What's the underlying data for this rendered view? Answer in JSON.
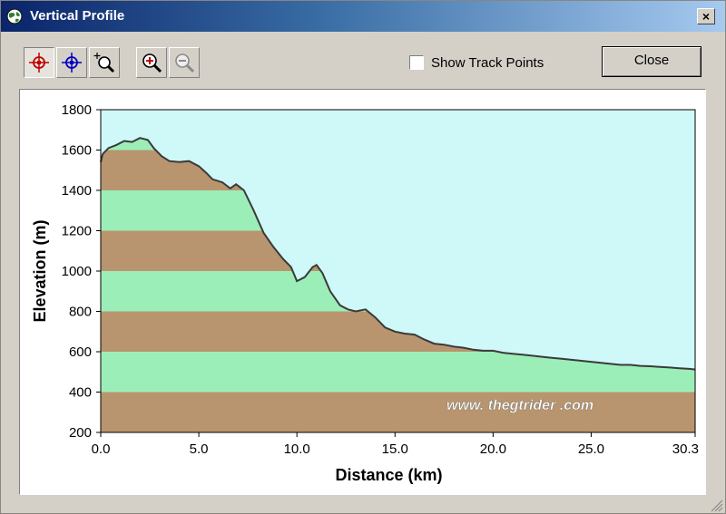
{
  "window": {
    "title": "Vertical Profile",
    "close_glyph": "×",
    "title_icon": "globe-icon"
  },
  "toolbar": {
    "buttons": [
      {
        "name": "red-crosshair-marker",
        "icon": "crosshair-red-icon",
        "pressed": true
      },
      {
        "name": "blue-crosshair-marker",
        "icon": "crosshair-blue-icon",
        "pressed": false
      },
      {
        "name": "zoom-area",
        "icon": "zoom-area-icon",
        "pressed": false
      },
      {
        "name": "zoom-in",
        "icon": "zoom-in-icon",
        "pressed": false
      },
      {
        "name": "zoom-out",
        "icon": "zoom-out-icon",
        "pressed": false,
        "disabled": true
      }
    ],
    "show_track_points_label": "Show Track Points",
    "show_track_points_checked": false,
    "close_label": "Close"
  },
  "chart_data": {
    "type": "area",
    "xlabel": "Distance   (km)",
    "ylabel": "Elevation  (m)",
    "xlim": [
      0,
      30.3
    ],
    "ylim": [
      200,
      1800
    ],
    "xticks": [
      "0.0",
      "5.0",
      "10.0",
      "15.0",
      "20.0",
      "25.0",
      "30.3"
    ],
    "xtick_values": [
      0,
      5,
      10,
      15,
      20,
      25,
      30.3
    ],
    "yticks": [
      "200",
      "400",
      "600",
      "800",
      "1000",
      "1200",
      "1400",
      "1600",
      "1800"
    ],
    "ytick_values": [
      200,
      400,
      600,
      800,
      1000,
      1200,
      1400,
      1600,
      1800
    ],
    "band_colors": [
      "#b8956e",
      "#9ceeb8"
    ],
    "sky_color": "#cff8f8",
    "line_color": "#3a3a3a",
    "watermark": "www. thegtrider .com",
    "x": [
      0,
      0.1,
      0.4,
      0.8,
      1.2,
      1.6,
      2.0,
      2.4,
      2.7,
      3.1,
      3.5,
      4.0,
      4.5,
      5.0,
      5.4,
      5.7,
      6.2,
      6.6,
      6.9,
      7.3,
      7.8,
      8.3,
      8.8,
      9.3,
      9.7,
      10.0,
      10.4,
      10.8,
      11.0,
      11.3,
      11.7,
      12.2,
      12.6,
      13.0,
      13.5,
      14.0,
      14.5,
      15.0,
      15.5,
      16.0,
      16.5,
      17.0,
      17.5,
      18.0,
      18.5,
      19.0,
      19.5,
      20.0,
      20.5,
      21.0,
      21.5,
      22.0,
      22.5,
      23.0,
      23.5,
      24.0,
      24.5,
      25.0,
      25.5,
      26.0,
      26.5,
      27.0,
      27.5,
      28.0,
      28.5,
      29.0,
      29.5,
      30.0,
      30.3
    ],
    "y": [
      1540,
      1580,
      1610,
      1625,
      1645,
      1640,
      1660,
      1650,
      1610,
      1570,
      1545,
      1540,
      1545,
      1520,
      1485,
      1455,
      1440,
      1410,
      1430,
      1400,
      1300,
      1190,
      1120,
      1060,
      1020,
      950,
      970,
      1020,
      1030,
      990,
      900,
      830,
      810,
      800,
      810,
      770,
      720,
      700,
      690,
      685,
      660,
      640,
      635,
      625,
      620,
      610,
      605,
      605,
      595,
      590,
      585,
      580,
      575,
      570,
      565,
      560,
      555,
      550,
      545,
      540,
      535,
      535,
      530,
      528,
      525,
      522,
      518,
      515,
      512
    ]
  }
}
